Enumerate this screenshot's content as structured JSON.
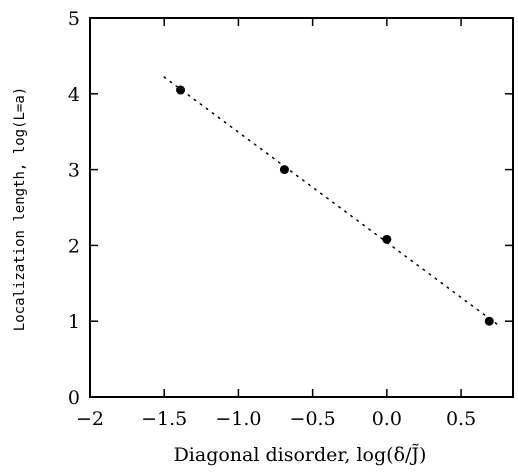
{
  "chart_data": {
    "type": "scatter",
    "xlabel": "Diagonal disorder, log(δ/J̃)",
    "ylabel": "Localization length, log(L=a)",
    "xlim": [
      -2,
      0.85
    ],
    "ylim": [
      0,
      5
    ],
    "xticks": [
      "−2",
      "−1.5",
      "−1.0",
      "−0.5",
      "0.0",
      "0.5"
    ],
    "xtick_values": [
      -2,
      -1.5,
      -1.0,
      -0.5,
      0.0,
      0.5
    ],
    "yticks": [
      "0",
      "1",
      "2",
      "3",
      "4",
      "5"
    ],
    "ytick_values": [
      0,
      1,
      2,
      3,
      4,
      5
    ],
    "points": [
      {
        "x": -1.39,
        "y": 4.05
      },
      {
        "x": -0.69,
        "y": 3.0
      },
      {
        "x": 0.0,
        "y": 2.08
      },
      {
        "x": 0.69,
        "y": 1.0
      }
    ],
    "fit_line": {
      "x": [
        -1.5,
        0.75
      ],
      "y": [
        4.22,
        0.95
      ]
    },
    "grid": false,
    "legend": "none",
    "marker_color": "#000000"
  }
}
